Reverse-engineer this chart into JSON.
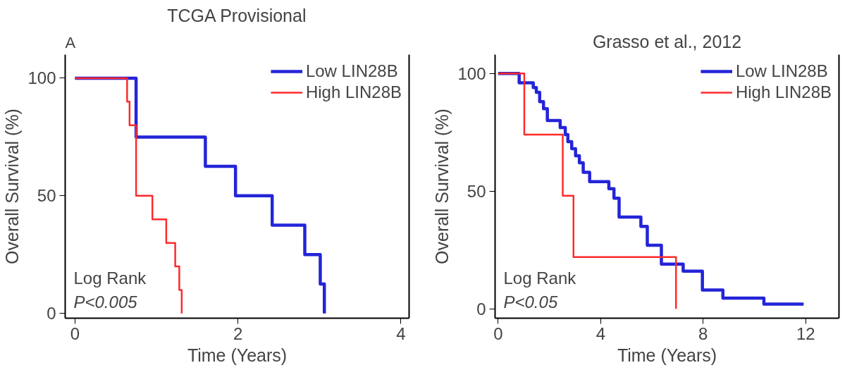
{
  "chart_data": [
    {
      "type": "step",
      "title": "TCGA Provisional",
      "xlabel": "Time (Years)",
      "ylabel": "Overall Survival (%)",
      "xlim": [
        -0.12,
        4.1
      ],
      "ylim": [
        -2,
        110
      ],
      "xticks": [
        0,
        2,
        4
      ],
      "yticks": [
        0,
        50,
        100
      ],
      "grid": false,
      "legend": "top right",
      "annotations": [
        "A",
        "Log Rank",
        "P<0.005"
      ],
      "series": [
        {
          "name": "Low LIN28B",
          "color": "#2424d8",
          "x": [
            0,
            0.75,
            1.6,
            1.97,
            2.42,
            2.82,
            3.01,
            3.06
          ],
          "values": [
            100,
            75,
            62.5,
            50,
            37.5,
            25,
            12.5,
            0
          ]
        },
        {
          "name": "High LIN28B",
          "color": "#ff2a2a",
          "x": [
            0,
            0.64,
            0.67,
            0.75,
            0.95,
            1.12,
            1.23,
            1.28,
            1.31
          ],
          "values": [
            100,
            90,
            80,
            50,
            40,
            30,
            20,
            10,
            0
          ]
        }
      ]
    },
    {
      "type": "step",
      "title": "Grasso et al., 2012",
      "xlabel": "Time (Years)",
      "ylabel": "Overall Survival (%)",
      "xlim": [
        -0.12,
        13.3
      ],
      "ylim": [
        -4,
        108
      ],
      "xticks": [
        0,
        4,
        8,
        12
      ],
      "yticks": [
        0,
        50,
        100
      ],
      "grid": false,
      "legend": "top right",
      "annotations": [
        "Log Rank",
        "P<0.05"
      ],
      "series": [
        {
          "name": "Low LIN28B",
          "color": "#2424d8",
          "x": [
            0,
            0.82,
            1.37,
            1.49,
            1.62,
            1.77,
            1.92,
            2.42,
            2.62,
            2.72,
            2.87,
            3.02,
            3.17,
            3.32,
            3.57,
            4.32,
            4.52,
            4.72,
            5.57,
            5.82,
            6.37,
            7.22,
            7.97,
            8.77,
            10.37,
            11.92
          ],
          "values": [
            100,
            96,
            94,
            92,
            88,
            85,
            80,
            77,
            74,
            71,
            68,
            65,
            62,
            58,
            54,
            51,
            47,
            39,
            35,
            27,
            19,
            16,
            8,
            4.5,
            2,
            2
          ]
        },
        {
          "name": "High LIN28B",
          "color": "#ff2a2a",
          "x": [
            0,
            1.02,
            2.52,
            2.94,
            6.94
          ],
          "values": [
            100,
            74,
            48,
            22,
            0
          ]
        }
      ]
    }
  ]
}
